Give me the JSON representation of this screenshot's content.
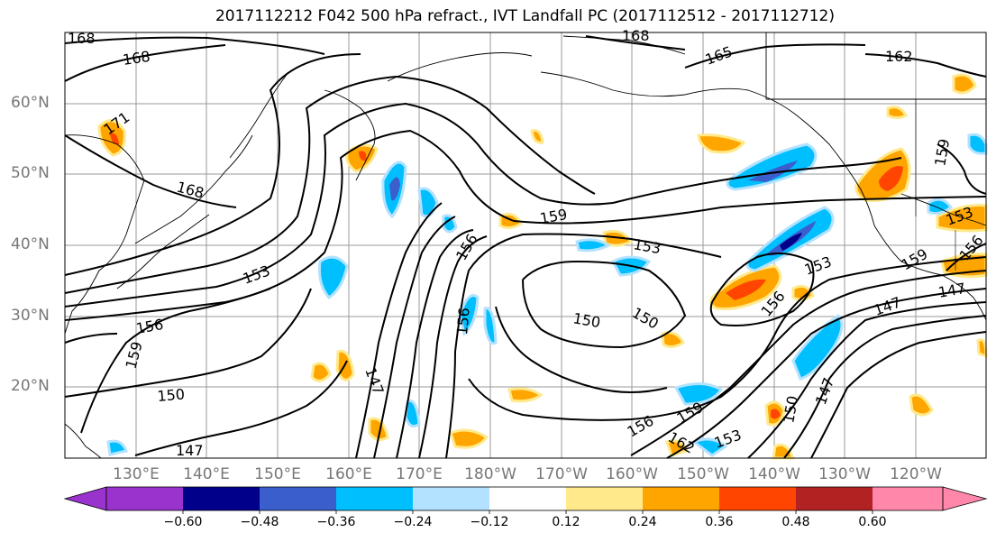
{
  "title": "2017112212 F042 500 hPa refract., IVT Landfall PC (2017112512 - 2017112712)",
  "lat_labels": [
    "60°N",
    "50°N",
    "40°N",
    "30°N",
    "20°N"
  ],
  "lon_labels": [
    "130°E",
    "140°E",
    "150°E",
    "160°E",
    "170°E",
    "180°W",
    "170°W",
    "160°W",
    "150°W",
    "140°W",
    "130°W",
    "120°W"
  ],
  "contour_labels": [
    "168",
    "168",
    "168",
    "171",
    "168",
    "165",
    "162",
    "159",
    "159",
    "156",
    "153",
    "153",
    "153",
    "156",
    "150",
    "150",
    "147",
    "147",
    "159",
    "156",
    "150",
    "147",
    "156",
    "159",
    "162",
    "153",
    "150",
    "147",
    "156",
    "159",
    "153",
    "156",
    "147"
  ],
  "colorbar": {
    "tick_labels": [
      "−0.60",
      "−0.48",
      "−0.36",
      "−0.24",
      "−0.12",
      "0.12",
      "0.24",
      "0.36",
      "0.48",
      "0.60"
    ],
    "colors": [
      "#9a32cd",
      "#00008b",
      "#3a5fcd",
      "#00bfff",
      "#b2e2ff",
      "#ffffff",
      "#ffe98a",
      "#ffa500",
      "#ff4500",
      "#b22222",
      "#ff88aa"
    ]
  },
  "colors": {
    "grid": "#9a9a9a",
    "contour": "#000000",
    "coast": "#000000",
    "axis_label": "#777777"
  }
}
